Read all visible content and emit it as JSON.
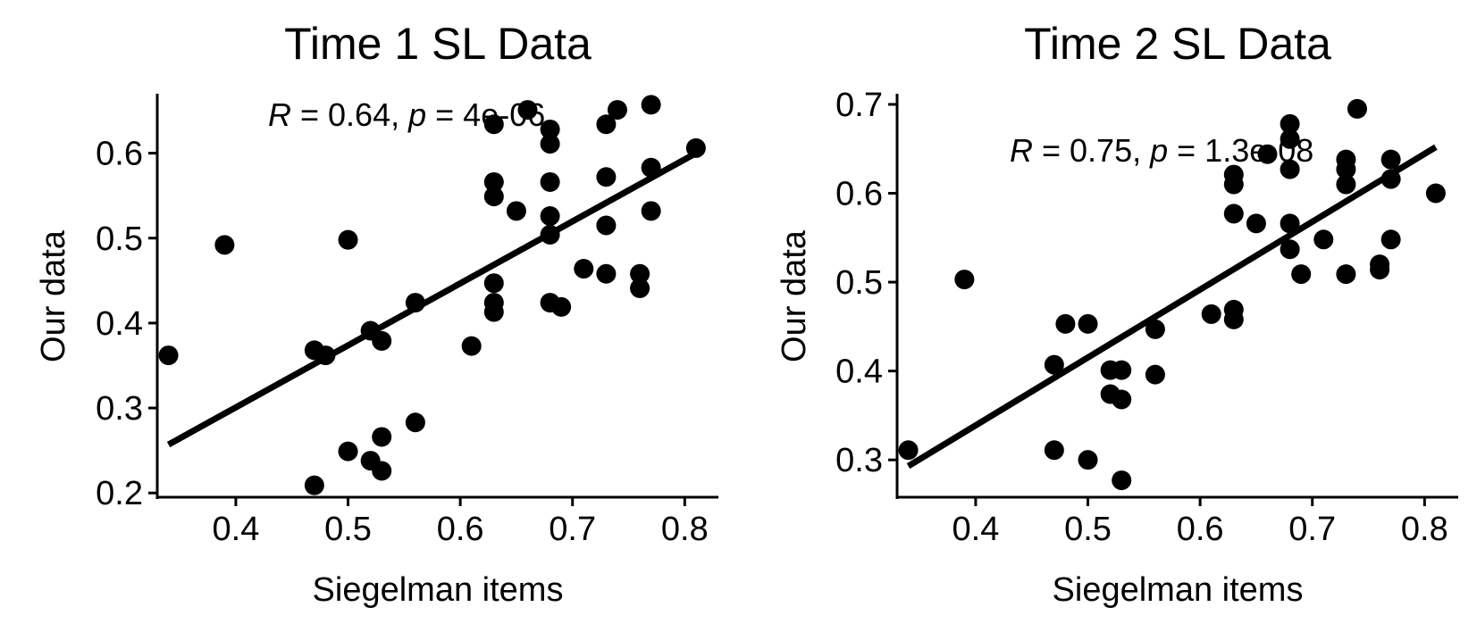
{
  "chart_data": [
    {
      "type": "scatter",
      "title": "Time 1 SL Data",
      "xlabel": "Siegelman items",
      "ylabel": "Our data",
      "xlim": [
        0.33,
        0.83
      ],
      "ylim": [
        0.195,
        0.67
      ],
      "xticks": [
        0.4,
        0.5,
        0.6,
        0.7,
        0.8
      ],
      "yticks": [
        0.2,
        0.3,
        0.4,
        0.5,
        0.6
      ],
      "xtick_labels": [
        "0.4",
        "0.5",
        "0.6",
        "0.7",
        "0.8"
      ],
      "ytick_labels": [
        "0.2",
        "0.3",
        "0.4",
        "0.5",
        "0.6"
      ],
      "annotation": {
        "r_symbol": "R",
        "r_text": " = 0.64, ",
        "p_symbol": "p",
        "p_text": " = 4e-06"
      },
      "fit_line": {
        "x": [
          0.34,
          0.81
        ],
        "y": [
          0.257,
          0.6
        ]
      },
      "points": [
        {
          "x": 0.34,
          "y": 0.362
        },
        {
          "x": 0.39,
          "y": 0.492
        },
        {
          "x": 0.47,
          "y": 0.368
        },
        {
          "x": 0.47,
          "y": 0.209
        },
        {
          "x": 0.48,
          "y": 0.362
        },
        {
          "x": 0.5,
          "y": 0.498
        },
        {
          "x": 0.5,
          "y": 0.249
        },
        {
          "x": 0.52,
          "y": 0.391
        },
        {
          "x": 0.52,
          "y": 0.238
        },
        {
          "x": 0.53,
          "y": 0.379
        },
        {
          "x": 0.53,
          "y": 0.266
        },
        {
          "x": 0.53,
          "y": 0.226
        },
        {
          "x": 0.56,
          "y": 0.424
        },
        {
          "x": 0.56,
          "y": 0.283
        },
        {
          "x": 0.61,
          "y": 0.373
        },
        {
          "x": 0.63,
          "y": 0.634
        },
        {
          "x": 0.63,
          "y": 0.566
        },
        {
          "x": 0.63,
          "y": 0.549
        },
        {
          "x": 0.63,
          "y": 0.447
        },
        {
          "x": 0.63,
          "y": 0.424
        },
        {
          "x": 0.63,
          "y": 0.413
        },
        {
          "x": 0.65,
          "y": 0.532
        },
        {
          "x": 0.66,
          "y": 0.651
        },
        {
          "x": 0.68,
          "y": 0.628
        },
        {
          "x": 0.68,
          "y": 0.611
        },
        {
          "x": 0.68,
          "y": 0.566
        },
        {
          "x": 0.68,
          "y": 0.526
        },
        {
          "x": 0.68,
          "y": 0.504
        },
        {
          "x": 0.68,
          "y": 0.424
        },
        {
          "x": 0.69,
          "y": 0.419
        },
        {
          "x": 0.71,
          "y": 0.464
        },
        {
          "x": 0.73,
          "y": 0.634
        },
        {
          "x": 0.73,
          "y": 0.572
        },
        {
          "x": 0.73,
          "y": 0.515
        },
        {
          "x": 0.73,
          "y": 0.458
        },
        {
          "x": 0.74,
          "y": 0.651
        },
        {
          "x": 0.76,
          "y": 0.458
        },
        {
          "x": 0.76,
          "y": 0.441
        },
        {
          "x": 0.77,
          "y": 0.657
        },
        {
          "x": 0.77,
          "y": 0.583
        },
        {
          "x": 0.77,
          "y": 0.532
        },
        {
          "x": 0.81,
          "y": 0.606
        }
      ]
    },
    {
      "type": "scatter",
      "title": "Time 2 SL Data",
      "xlabel": "Siegelman items",
      "ylabel": "Our data",
      "xlim": [
        0.33,
        0.83
      ],
      "ylim": [
        0.258,
        0.712
      ],
      "xticks": [
        0.4,
        0.5,
        0.6,
        0.7,
        0.8
      ],
      "yticks": [
        0.3,
        0.4,
        0.5,
        0.6,
        0.7
      ],
      "xtick_labels": [
        "0.4",
        "0.5",
        "0.6",
        "0.7",
        "0.8"
      ],
      "ytick_labels": [
        "0.3",
        "0.4",
        "0.5",
        "0.6",
        "0.7"
      ],
      "annotation": {
        "r_symbol": "R",
        "r_text": " = 0.75, ",
        "p_symbol": "p",
        "p_text": " = 1.3e-08"
      },
      "fit_line": {
        "x": [
          0.34,
          0.81
        ],
        "y": [
          0.293,
          0.652
        ]
      },
      "points": [
        {
          "x": 0.34,
          "y": 0.311
        },
        {
          "x": 0.39,
          "y": 0.503
        },
        {
          "x": 0.47,
          "y": 0.407
        },
        {
          "x": 0.47,
          "y": 0.311
        },
        {
          "x": 0.48,
          "y": 0.453
        },
        {
          "x": 0.5,
          "y": 0.453
        },
        {
          "x": 0.5,
          "y": 0.3
        },
        {
          "x": 0.52,
          "y": 0.401
        },
        {
          "x": 0.52,
          "y": 0.374
        },
        {
          "x": 0.53,
          "y": 0.401
        },
        {
          "x": 0.53,
          "y": 0.368
        },
        {
          "x": 0.53,
          "y": 0.277
        },
        {
          "x": 0.56,
          "y": 0.447
        },
        {
          "x": 0.56,
          "y": 0.396
        },
        {
          "x": 0.61,
          "y": 0.464
        },
        {
          "x": 0.63,
          "y": 0.621
        },
        {
          "x": 0.63,
          "y": 0.61
        },
        {
          "x": 0.63,
          "y": 0.577
        },
        {
          "x": 0.63,
          "y": 0.469
        },
        {
          "x": 0.63,
          "y": 0.458
        },
        {
          "x": 0.65,
          "y": 0.566
        },
        {
          "x": 0.66,
          "y": 0.644
        },
        {
          "x": 0.68,
          "y": 0.678
        },
        {
          "x": 0.68,
          "y": 0.661
        },
        {
          "x": 0.68,
          "y": 0.627
        },
        {
          "x": 0.68,
          "y": 0.566
        },
        {
          "x": 0.68,
          "y": 0.537
        },
        {
          "x": 0.69,
          "y": 0.509
        },
        {
          "x": 0.71,
          "y": 0.548
        },
        {
          "x": 0.73,
          "y": 0.638
        },
        {
          "x": 0.73,
          "y": 0.627
        },
        {
          "x": 0.73,
          "y": 0.61
        },
        {
          "x": 0.73,
          "y": 0.509
        },
        {
          "x": 0.74,
          "y": 0.695
        },
        {
          "x": 0.76,
          "y": 0.52
        },
        {
          "x": 0.76,
          "y": 0.514
        },
        {
          "x": 0.77,
          "y": 0.638
        },
        {
          "x": 0.77,
          "y": 0.616
        },
        {
          "x": 0.77,
          "y": 0.548
        },
        {
          "x": 0.81,
          "y": 0.6
        }
      ]
    }
  ]
}
